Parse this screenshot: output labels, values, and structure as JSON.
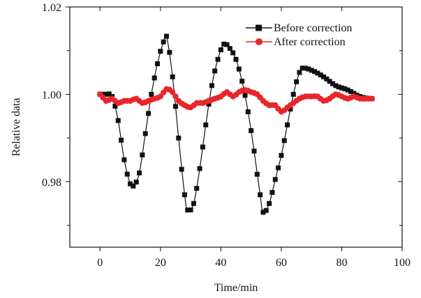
{
  "chart_data": {
    "type": "line",
    "xlabel": "Time/min",
    "ylabel": "Relative data",
    "xlim": [
      -10,
      100
    ],
    "ylim": [
      0.965,
      1.02
    ],
    "x_ticks": [
      0,
      20,
      40,
      60,
      80,
      100
    ],
    "x_tick_labels": [
      "0",
      "20",
      "40",
      "60",
      "80",
      "100"
    ],
    "y_ticks": [
      0.98,
      1.0,
      1.02
    ],
    "y_tick_labels": [
      "0.98",
      "1.00",
      "1.02"
    ],
    "legend_position": "top-right",
    "grid": false,
    "series": [
      {
        "name": "Before correction",
        "color": "#111111",
        "marker": "square",
        "x": [
          0,
          2,
          4,
          6,
          8,
          10,
          11,
          13,
          15,
          17,
          19,
          21,
          22,
          24,
          26,
          28,
          29,
          31,
          33,
          35,
          37,
          39,
          41,
          43,
          45,
          47,
          49,
          51,
          53,
          54,
          56,
          58,
          60,
          62,
          64,
          66,
          67,
          70,
          74,
          78,
          82,
          86,
          90
        ],
        "y": [
          1.0,
          1.0,
          0.9995,
          0.994,
          0.985,
          0.9795,
          0.979,
          0.982,
          0.991,
          1.0,
          1.007,
          1.012,
          1.0133,
          1.004,
          0.99,
          0.977,
          0.9735,
          0.975,
          0.983,
          0.993,
          1.002,
          1.008,
          1.0115,
          1.0105,
          1.008,
          1.003,
          0.996,
          0.987,
          0.977,
          0.973,
          0.975,
          0.9805,
          0.986,
          0.993,
          1.0,
          1.005,
          1.006,
          1.0055,
          1.004,
          1.002,
          1.001,
          0.9995,
          0.999
        ]
      },
      {
        "name": "After correction",
        "color": "#e8262b",
        "marker": "circle",
        "x": [
          0,
          2,
          4,
          6,
          8,
          10,
          12,
          14,
          16,
          18,
          20,
          22,
          24,
          26,
          28,
          30,
          32,
          34,
          36,
          38,
          40,
          42,
          44,
          46,
          48,
          50,
          52,
          54,
          56,
          58,
          60,
          62,
          64,
          66,
          68,
          70,
          72,
          74,
          76,
          78,
          80,
          82,
          84,
          86,
          88,
          90
        ],
        "y": [
          1.0,
          0.9985,
          0.999,
          0.998,
          0.9985,
          0.9985,
          0.999,
          0.998,
          0.9985,
          0.999,
          0.9995,
          1.0012,
          1.0005,
          0.9985,
          0.9975,
          0.997,
          0.998,
          0.998,
          0.9985,
          0.999,
          0.9995,
          1.0005,
          0.9995,
          1.0005,
          1.001,
          1.0005,
          1.0,
          0.9985,
          0.9975,
          0.9975,
          0.996,
          0.997,
          0.998,
          0.999,
          0.9995,
          0.9995,
          0.9995,
          0.9985,
          0.999,
          1.0,
          0.9995,
          0.999,
          0.9995,
          0.999,
          0.999,
          0.999
        ]
      }
    ]
  }
}
